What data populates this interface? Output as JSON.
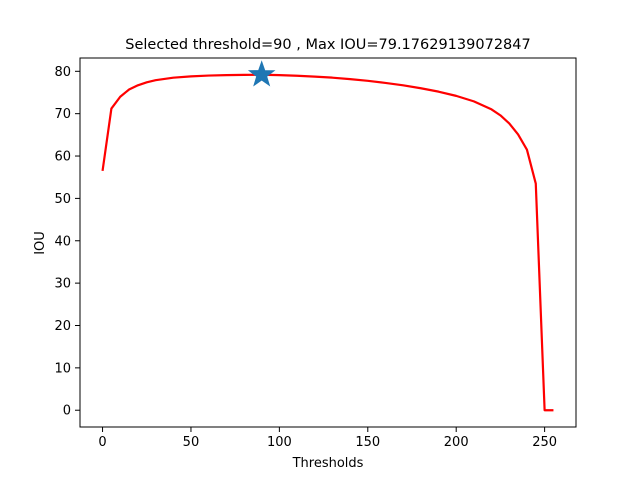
{
  "chart_data": {
    "type": "line",
    "title": "Selected threshold=90 , Max IOU=79.17629139072847",
    "xlabel": "Thresholds",
    "ylabel": "IOU",
    "xlim": [
      -12.75,
      267.75
    ],
    "ylim": [
      -3.96,
      83.14
    ],
    "xticks": [
      0,
      50,
      100,
      150,
      200,
      250
    ],
    "yticks": [
      0,
      10,
      20,
      30,
      40,
      50,
      60,
      70,
      80
    ],
    "grid": false,
    "series": [
      {
        "color": "#ff0000",
        "x": [
          0,
          5,
          10,
          15,
          20,
          25,
          30,
          40,
          50,
          60,
          70,
          80,
          90,
          100,
          110,
          120,
          130,
          140,
          150,
          160,
          170,
          180,
          190,
          200,
          210,
          220,
          225,
          230,
          235,
          240,
          245,
          250,
          255
        ],
        "y": [
          56.5,
          71.2,
          74.0,
          75.7,
          76.7,
          77.4,
          77.9,
          78.5,
          78.8,
          79.0,
          79.1,
          79.15,
          79.18,
          79.1,
          78.95,
          78.75,
          78.5,
          78.15,
          77.75,
          77.25,
          76.7,
          76.0,
          75.2,
          74.2,
          72.9,
          71.0,
          69.6,
          67.7,
          65.1,
          61.5,
          53.5,
          0.0,
          0.0
        ]
      }
    ],
    "marker": {
      "x": 90,
      "y": 79.17629139072847,
      "shape": "star",
      "color": "#1f77b4"
    }
  }
}
